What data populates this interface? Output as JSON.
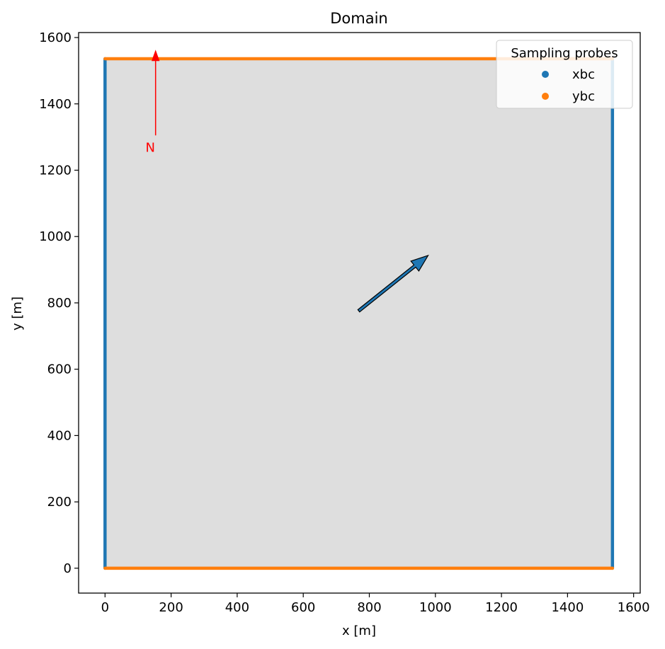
{
  "chart_data": {
    "type": "line",
    "title": "Domain",
    "xlabel": "x [m]",
    "ylabel": "y [m]",
    "xlim": [
      -80,
      1620
    ],
    "ylim": [
      -75,
      1615
    ],
    "xticks": [
      0,
      200,
      400,
      600,
      800,
      1000,
      1200,
      1400,
      1600
    ],
    "yticks": [
      0,
      200,
      400,
      600,
      800,
      1000,
      1200,
      1400,
      1600
    ],
    "grid": false,
    "domain_box": {
      "x": [
        0,
        1536
      ],
      "y": [
        0,
        1536
      ],
      "fill": "#dedede"
    },
    "series": [
      {
        "name": "xbc",
        "color": "#1f77b4",
        "segments": [
          [
            [
              0,
              0
            ],
            [
              0,
              1536
            ]
          ],
          [
            [
              1536,
              0
            ],
            [
              1536,
              1536
            ]
          ]
        ]
      },
      {
        "name": "ybc",
        "color": "#ff7f0e",
        "segments": [
          [
            [
              0,
              0
            ],
            [
              1536,
              0
            ]
          ],
          [
            [
              0,
              1536
            ],
            [
              1536,
              1536
            ]
          ]
        ]
      }
    ],
    "legend": {
      "title": "Sampling probes",
      "placement": "top-right"
    },
    "annotations": {
      "north_arrow": {
        "label": "N",
        "color": "#ff0000",
        "x": 153,
        "y_start": 1305,
        "y_end": 1560,
        "label_xy": [
          137,
          1268
        ]
      },
      "wind_arrow": {
        "from": [
          768,
          776
        ],
        "to": [
          978,
          943
        ],
        "color": "#1f77b4"
      }
    }
  }
}
